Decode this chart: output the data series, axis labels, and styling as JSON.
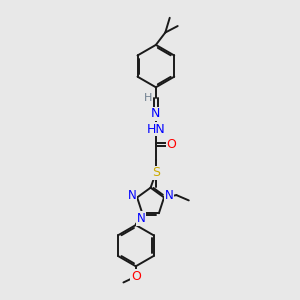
{
  "bg_color": "#e8e8e8",
  "bond_color": "#1a1a1a",
  "N_color": "#0000ff",
  "O_color": "#ff0000",
  "S_color": "#ccaa00",
  "H_color": "#708090",
  "figsize": [
    3.0,
    3.0
  ],
  "dpi": 100,
  "xlim": [
    0,
    10
  ],
  "ylim": [
    0,
    10
  ]
}
